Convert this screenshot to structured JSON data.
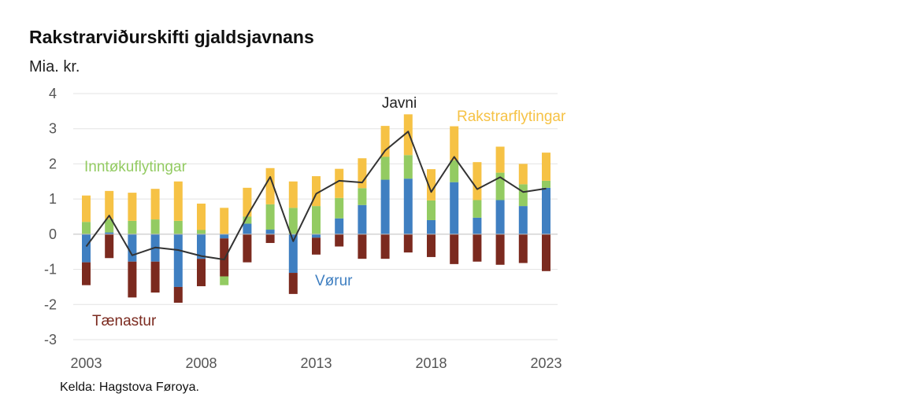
{
  "title": "Rakstrarviðurskifti gjaldsjavnans",
  "unit": "Mia. kr.",
  "source": "Kelda: Hagstova Føroya.",
  "chart_data": {
    "type": "bar",
    "stacked": true,
    "ylim": [
      -3,
      4
    ],
    "yticks": [
      -3,
      -2,
      -1,
      0,
      1,
      2,
      3,
      4
    ],
    "xtick_labels": [
      "2003",
      "2008",
      "2013",
      "2018",
      "2023"
    ],
    "xtick_years": [
      2003,
      2008,
      2013,
      2018,
      2023
    ],
    "years": [
      2003,
      2004,
      2005,
      2006,
      2007,
      2008,
      2009,
      2010,
      2011,
      2012,
      2013,
      2014,
      2015,
      2016,
      2017,
      2018,
      2019,
      2020,
      2021,
      2022,
      2023
    ],
    "grid": true,
    "series": [
      {
        "name": "Vørur",
        "color": "#3f7fc1",
        "values": [
          -0.8,
          0.05,
          -0.78,
          -0.78,
          -1.5,
          -0.7,
          -0.12,
          0.3,
          0.13,
          -1.1,
          -0.1,
          0.45,
          0.83,
          1.55,
          1.58,
          0.4,
          1.48,
          0.47,
          0.97,
          0.8,
          1.32
        ]
      },
      {
        "name": "Tænastur",
        "color": "#7b2a1f",
        "values": [
          -0.65,
          -0.68,
          -1.02,
          -0.88,
          -0.45,
          -0.78,
          -1.08,
          -0.8,
          -0.25,
          -0.6,
          -0.48,
          -0.35,
          -0.7,
          -0.7,
          -0.52,
          -0.65,
          -0.85,
          -0.78,
          -0.87,
          -0.82,
          -1.05
        ]
      },
      {
        "name": "Inntøkuflytingar",
        "color": "#93cb62",
        "values": [
          0.35,
          0.38,
          0.38,
          0.42,
          0.38,
          0.12,
          -0.25,
          0.2,
          0.72,
          0.75,
          0.8,
          0.58,
          0.48,
          0.65,
          0.67,
          0.56,
          0.62,
          0.5,
          0.78,
          0.62,
          0.2
        ]
      },
      {
        "name": "Rakstrarflytingar",
        "color": "#f6c245",
        "values": [
          0.75,
          0.8,
          0.8,
          0.87,
          1.12,
          0.75,
          0.75,
          0.82,
          1.03,
          0.75,
          0.85,
          0.83,
          0.85,
          0.88,
          1.16,
          0.89,
          0.97,
          1.08,
          0.74,
          0.58,
          0.8
        ]
      }
    ],
    "line": {
      "name": "Javni",
      "color": "#333333",
      "values": [
        -0.35,
        0.53,
        -0.6,
        -0.38,
        -0.45,
        -0.62,
        -0.72,
        0.52,
        1.63,
        -0.2,
        1.15,
        1.52,
        1.47,
        2.38,
        2.92,
        1.2,
        2.2,
        1.28,
        1.62,
        1.2,
        1.3
      ]
    },
    "annotations": [
      {
        "text": "Inntøkuflytingar",
        "color": "#93cb62"
      },
      {
        "text": "Javni",
        "color": "#222222"
      },
      {
        "text": "Rakstrarflytingar",
        "color": "#f6c245"
      },
      {
        "text": "Vørur",
        "color": "#3f7fc1"
      },
      {
        "text": "Tænastur",
        "color": "#7b2a1f"
      }
    ]
  }
}
